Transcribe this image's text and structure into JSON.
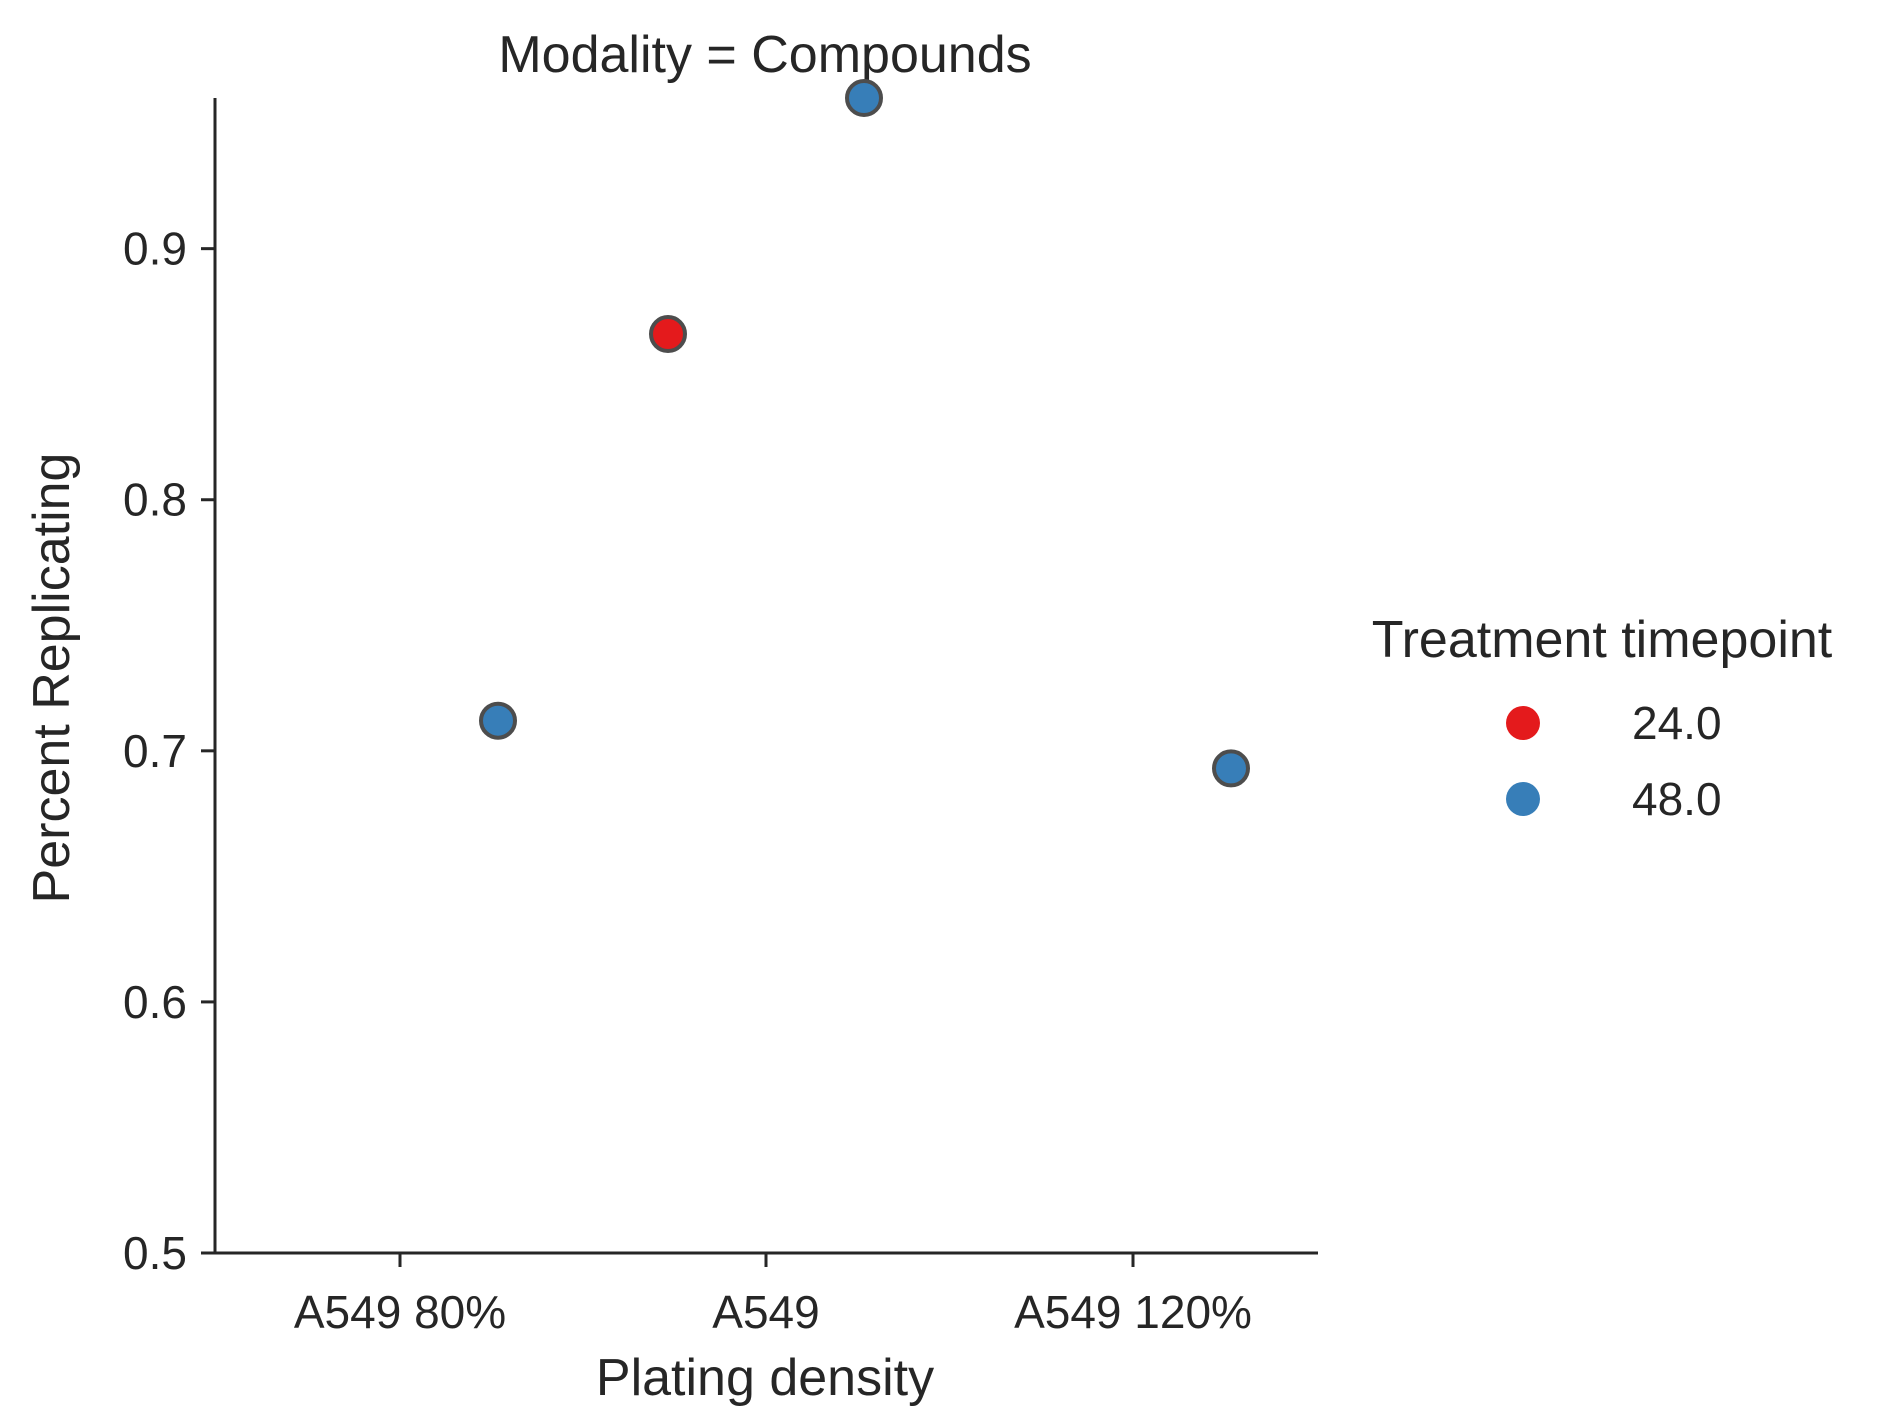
{
  "chart_data": {
    "type": "scatter",
    "title": "Modality = Compounds",
    "xlabel": "Plating density",
    "ylabel": "Percent Replicating",
    "categories": [
      "A549 80%",
      "A549",
      "A549 120%"
    ],
    "ylim": [
      0.5,
      0.96
    ],
    "yticks": [
      "0.5",
      "0.6",
      "0.7",
      "0.8",
      "0.9"
    ],
    "grid": false,
    "legend": {
      "title": "Treatment timepoint",
      "placement": "right",
      "entries": [
        {
          "label": "24.0",
          "color": "#e41a1c"
        },
        {
          "label": "48.0",
          "color": "#377eb8"
        }
      ]
    },
    "series": [
      {
        "name": "24.0",
        "color": "#e41a1c",
        "points": [
          {
            "category": "A549",
            "y": 0.866
          }
        ]
      },
      {
        "name": "48.0",
        "color": "#377eb8",
        "points": [
          {
            "category": "A549 80%",
            "y": 0.712
          },
          {
            "category": "A549",
            "y": 0.96
          },
          {
            "category": "A549 120%",
            "y": 0.693
          }
        ]
      }
    ]
  }
}
